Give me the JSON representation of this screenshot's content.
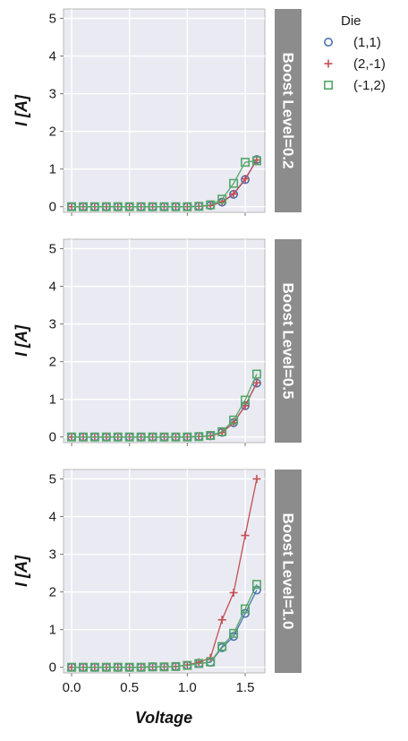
{
  "chart_data": {
    "type": "line",
    "xlabel": "Voltage",
    "ylabel": "I [A]",
    "xlim": [
      -0.07,
      1.67
    ],
    "ylim": [
      -0.15,
      5.25
    ],
    "xticks": [
      0.0,
      0.5,
      1.0,
      1.5
    ],
    "xtick_labels": [
      "0.0",
      "0.5",
      "1.0",
      "1.5"
    ],
    "yticks": [
      0,
      1,
      2,
      3,
      4,
      5
    ],
    "ytick_labels": [
      "0",
      "1",
      "2",
      "3",
      "4",
      "5"
    ],
    "grid": true,
    "legend": {
      "title": "Die",
      "placement": "top-right-outside",
      "entries": [
        {
          "label": "(1,1)",
          "marker": "circle",
          "color": "#4c72b0"
        },
        {
          "label": "(2,-1)",
          "marker": "plus",
          "color": "#c44e52"
        },
        {
          "label": "(-1,2)",
          "marker": "square",
          "color": "#55a868"
        }
      ]
    },
    "x": [
      0.0,
      0.1,
      0.2,
      0.3,
      0.4,
      0.5,
      0.6,
      0.7,
      0.8,
      0.9,
      1.0,
      1.1,
      1.2,
      1.3,
      1.4,
      1.5,
      1.6
    ],
    "facets": [
      {
        "label": "Boost Level=0.2",
        "series": [
          {
            "name": "(1,1)",
            "values": [
              0,
              0,
              0,
              0,
              0,
              0,
              0,
              0,
              0,
              0,
              0,
              0.01,
              0.03,
              0.12,
              0.33,
              0.72,
              1.25
            ]
          },
          {
            "name": "(2,-1)",
            "values": [
              0,
              0,
              0,
              0,
              0,
              0,
              0,
              0,
              0,
              0,
              0,
              0.01,
              0.03,
              0.13,
              0.34,
              0.74,
              1.24
            ]
          },
          {
            "name": "(-1,2)",
            "values": [
              0,
              0,
              0,
              0,
              0,
              0,
              0,
              0,
              0,
              0,
              0,
              0.01,
              0.05,
              0.2,
              0.62,
              1.18,
              1.22
            ]
          }
        ]
      },
      {
        "label": "Boost Level=0.5",
        "series": [
          {
            "name": "(1,1)",
            "values": [
              0,
              0,
              0,
              0,
              0,
              0,
              0,
              0,
              0,
              0,
              0,
              0.01,
              0.03,
              0.12,
              0.38,
              0.83,
              1.43
            ]
          },
          {
            "name": "(2,-1)",
            "values": [
              0,
              0,
              0,
              0,
              0,
              0,
              0,
              0,
              0,
              0,
              0,
              0.01,
              0.03,
              0.12,
              0.38,
              0.83,
              1.44
            ]
          },
          {
            "name": "(-1,2)",
            "values": [
              0,
              0,
              0,
              0,
              0,
              0,
              0,
              0,
              0,
              0,
              0,
              0.01,
              0.04,
              0.14,
              0.45,
              0.98,
              1.67
            ]
          }
        ]
      },
      {
        "label": "Boost Level=1.0",
        "series": [
          {
            "name": "(1,1)",
            "values": [
              0,
              0,
              0,
              0,
              0,
              0,
              0,
              0.01,
              0.01,
              0.02,
              0.05,
              0.1,
              0.13,
              0.52,
              0.82,
              1.43,
              2.05
            ]
          },
          {
            "name": "(2,-1)",
            "values": [
              0,
              0,
              0,
              0,
              0,
              0,
              0,
              0.01,
              0.01,
              0.02,
              0.06,
              0.13,
              0.25,
              1.26,
              1.98,
              3.5,
              5.0
            ]
          },
          {
            "name": "(-1,2)",
            "values": [
              0,
              0,
              0,
              0,
              0,
              0,
              0,
              0.01,
              0.01,
              0.02,
              0.05,
              0.1,
              0.14,
              0.55,
              0.9,
              1.55,
              2.2
            ]
          }
        ]
      }
    ]
  }
}
